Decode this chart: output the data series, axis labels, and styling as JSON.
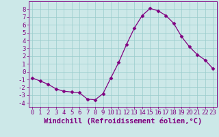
{
  "x": [
    0,
    1,
    2,
    3,
    4,
    5,
    6,
    7,
    8,
    9,
    10,
    11,
    12,
    13,
    14,
    15,
    16,
    17,
    18,
    19,
    20,
    21,
    22,
    23
  ],
  "y": [
    -0.8,
    -1.2,
    -1.6,
    -2.2,
    -2.5,
    -2.6,
    -2.7,
    -3.5,
    -3.6,
    -2.8,
    -0.8,
    1.2,
    3.5,
    5.6,
    7.2,
    8.1,
    7.8,
    7.2,
    6.2,
    4.5,
    3.2,
    2.2,
    1.5,
    0.4
  ],
  "line_color": "#800080",
  "marker": "D",
  "marker_size": 2.5,
  "bg_color": "#cce8e8",
  "grid_color": "#99cccc",
  "xlabel": "Windchill (Refroidissement éolien,°C)",
  "xlim": [
    -0.5,
    23.5
  ],
  "ylim": [
    -4.5,
    9.0
  ],
  "xticks": [
    0,
    1,
    2,
    3,
    4,
    5,
    6,
    7,
    8,
    9,
    10,
    11,
    12,
    13,
    14,
    15,
    16,
    17,
    18,
    19,
    20,
    21,
    22,
    23
  ],
  "yticks": [
    -4,
    -3,
    -2,
    -1,
    0,
    1,
    2,
    3,
    4,
    5,
    6,
    7,
    8
  ],
  "tick_fontsize": 6.5,
  "xlabel_fontsize": 7.5,
  "label_color": "#800080",
  "linewidth": 0.9
}
